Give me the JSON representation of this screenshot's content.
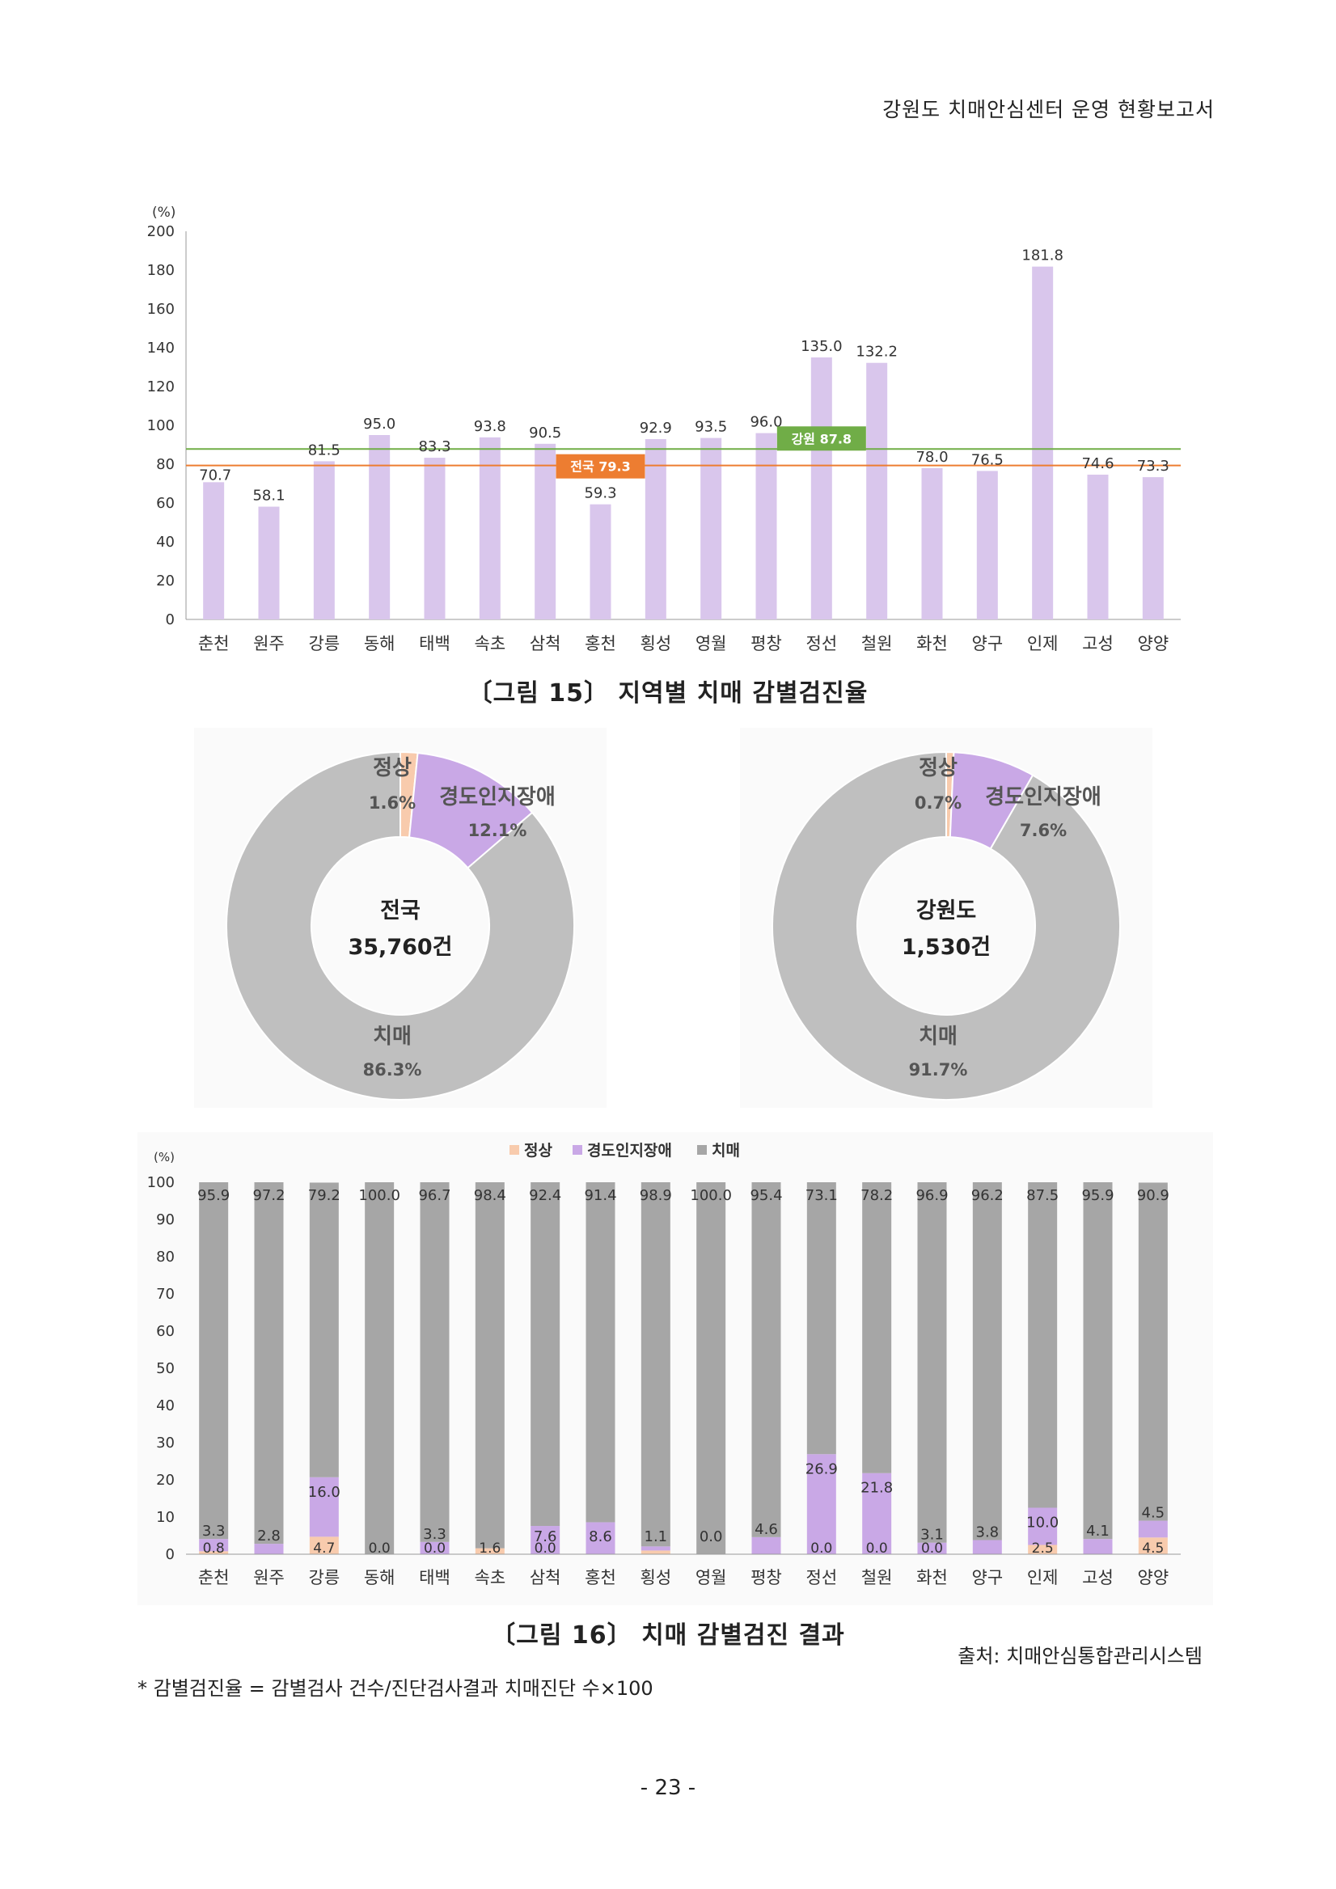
{
  "header": {
    "title": "강원도 치매안심센터 운영 현황보고서"
  },
  "figure15": {
    "caption": "〔그림 15〕 지역별 치매 감별검진율",
    "chart_data": {
      "type": "bar",
      "ylabel": "(%)",
      "ylim": [
        0,
        200
      ],
      "yticks": [
        "0",
        "20",
        "40",
        "60",
        "80",
        "100",
        "120",
        "140",
        "160",
        "180",
        "200"
      ],
      "categories": [
        "춘천",
        "원주",
        "강릉",
        "동해",
        "태백",
        "속초",
        "삼척",
        "홍천",
        "횡성",
        "영월",
        "평창",
        "정선",
        "철원",
        "화천",
        "양구",
        "인제",
        "고성",
        "양양"
      ],
      "values": [
        70.7,
        58.1,
        81.5,
        95.0,
        83.3,
        93.8,
        90.5,
        59.3,
        92.9,
        93.5,
        96.0,
        135.0,
        132.2,
        78.0,
        76.5,
        181.8,
        74.6,
        73.3
      ],
      "value_labels": [
        "70.7",
        "58.1",
        "81.5",
        "95.0",
        "83.3",
        "93.8",
        "90.5",
        "59.3",
        "92.9",
        "93.5",
        "96.0",
        "135.0",
        "132.2",
        "78.0",
        "76.5",
        "181.8",
        "74.6",
        "73.3"
      ],
      "reference_lines": [
        {
          "label": "전국 79.3",
          "value": 79.3,
          "color": "#ED7D31"
        },
        {
          "label": "강원 87.8",
          "value": 87.8,
          "color": "#70AD47"
        }
      ],
      "bar_color": "#D9C6EC"
    }
  },
  "donuts": {
    "chart_data": [
      {
        "type": "pie",
        "center_title": "전국",
        "center_value": "35,760건",
        "slices": [
          {
            "name": "정상",
            "value": 1.6,
            "label": "1.6%",
            "color": "#F8CBAD"
          },
          {
            "name": "경도인지장애",
            "value": 12.1,
            "label": "12.1%",
            "color": "#C9A8E6"
          },
          {
            "name": "치매",
            "value": 86.3,
            "label": "86.3%",
            "color": "#BFBFBF"
          }
        ]
      },
      {
        "type": "pie",
        "center_title": "강원도",
        "center_value": "1,530건",
        "slices": [
          {
            "name": "정상",
            "value": 0.7,
            "label": "0.7%",
            "color": "#F8CBAD"
          },
          {
            "name": "경도인지장애",
            "value": 7.6,
            "label": "7.6%",
            "color": "#C9A8E6"
          },
          {
            "name": "치매",
            "value": 91.7,
            "label": "91.7%",
            "color": "#BFBFBF"
          }
        ]
      }
    ]
  },
  "figure16": {
    "caption": "〔그림 16〕 치매 감별검진 결과",
    "chart_data": {
      "type": "bar",
      "stacked": true,
      "ylabel": "(%)",
      "ylim": [
        0,
        100
      ],
      "yticks": [
        "0",
        "10",
        "20",
        "30",
        "40",
        "50",
        "60",
        "70",
        "80",
        "90",
        "100"
      ],
      "legend": [
        "정상",
        "경도인지장애",
        "치매"
      ],
      "categories": [
        "춘천",
        "원주",
        "강릉",
        "동해",
        "태백",
        "속초",
        "삼척",
        "홍천",
        "횡성",
        "영월",
        "평창",
        "정선",
        "철원",
        "화천",
        "양구",
        "인제",
        "고성",
        "양양"
      ],
      "series": [
        {
          "name": "정상",
          "color": "#F8CBAD",
          "values": [
            0.8,
            0,
            4.7,
            0.0,
            0.0,
            1.6,
            0.0,
            0,
            1,
            0,
            0,
            0.0,
            0.0,
            0.0,
            0,
            2.5,
            0,
            4.5
          ],
          "labels": [
            "0.8",
            "",
            "4.7",
            "0.0",
            "0.0",
            "1.6",
            "0.0",
            "",
            "",
            "",
            "",
            "0.0",
            "0.0",
            "0.0",
            "",
            "2.5",
            "",
            "4.5"
          ]
        },
        {
          "name": "경도인지장애",
          "color": "#C9A8E6",
          "values": [
            3.3,
            2.8,
            16.0,
            0,
            3.3,
            0,
            7.6,
            8.6,
            1.1,
            0.0,
            4.6,
            26.9,
            21.8,
            3.1,
            3.8,
            10.0,
            4.1,
            4.5
          ],
          "labels": [
            "3.3",
            "2.8",
            "16.0",
            "",
            "3.3",
            "",
            "7.6",
            "8.6",
            "1.1",
            "0.0",
            "4.6",
            "26.9",
            "21.8",
            "3.1",
            "3.8",
            "10.0",
            "4.1",
            "4.5"
          ]
        },
        {
          "name": "치매",
          "color": "#A6A6A6",
          "values": [
            95.9,
            97.2,
            79.2,
            100.0,
            96.7,
            98.4,
            92.4,
            91.4,
            98.9,
            100.0,
            95.4,
            73.1,
            78.2,
            96.9,
            96.2,
            87.5,
            95.9,
            90.9
          ],
          "labels": [
            "95.9",
            "97.2",
            "79.2",
            "100.0",
            "96.7",
            "98.4",
            "92.4",
            "91.4",
            "98.9",
            "100.0",
            "95.4",
            "73.1",
            "78.2",
            "96.9",
            "96.2",
            "87.5",
            "95.9",
            "90.9"
          ]
        }
      ]
    }
  },
  "source": "출처: 치매안심통합관리시스템",
  "footnote": "* 감별검진율 = 감별검사 건수/진단검사결과 치매진단 수×100",
  "page_number": "- 23 -"
}
